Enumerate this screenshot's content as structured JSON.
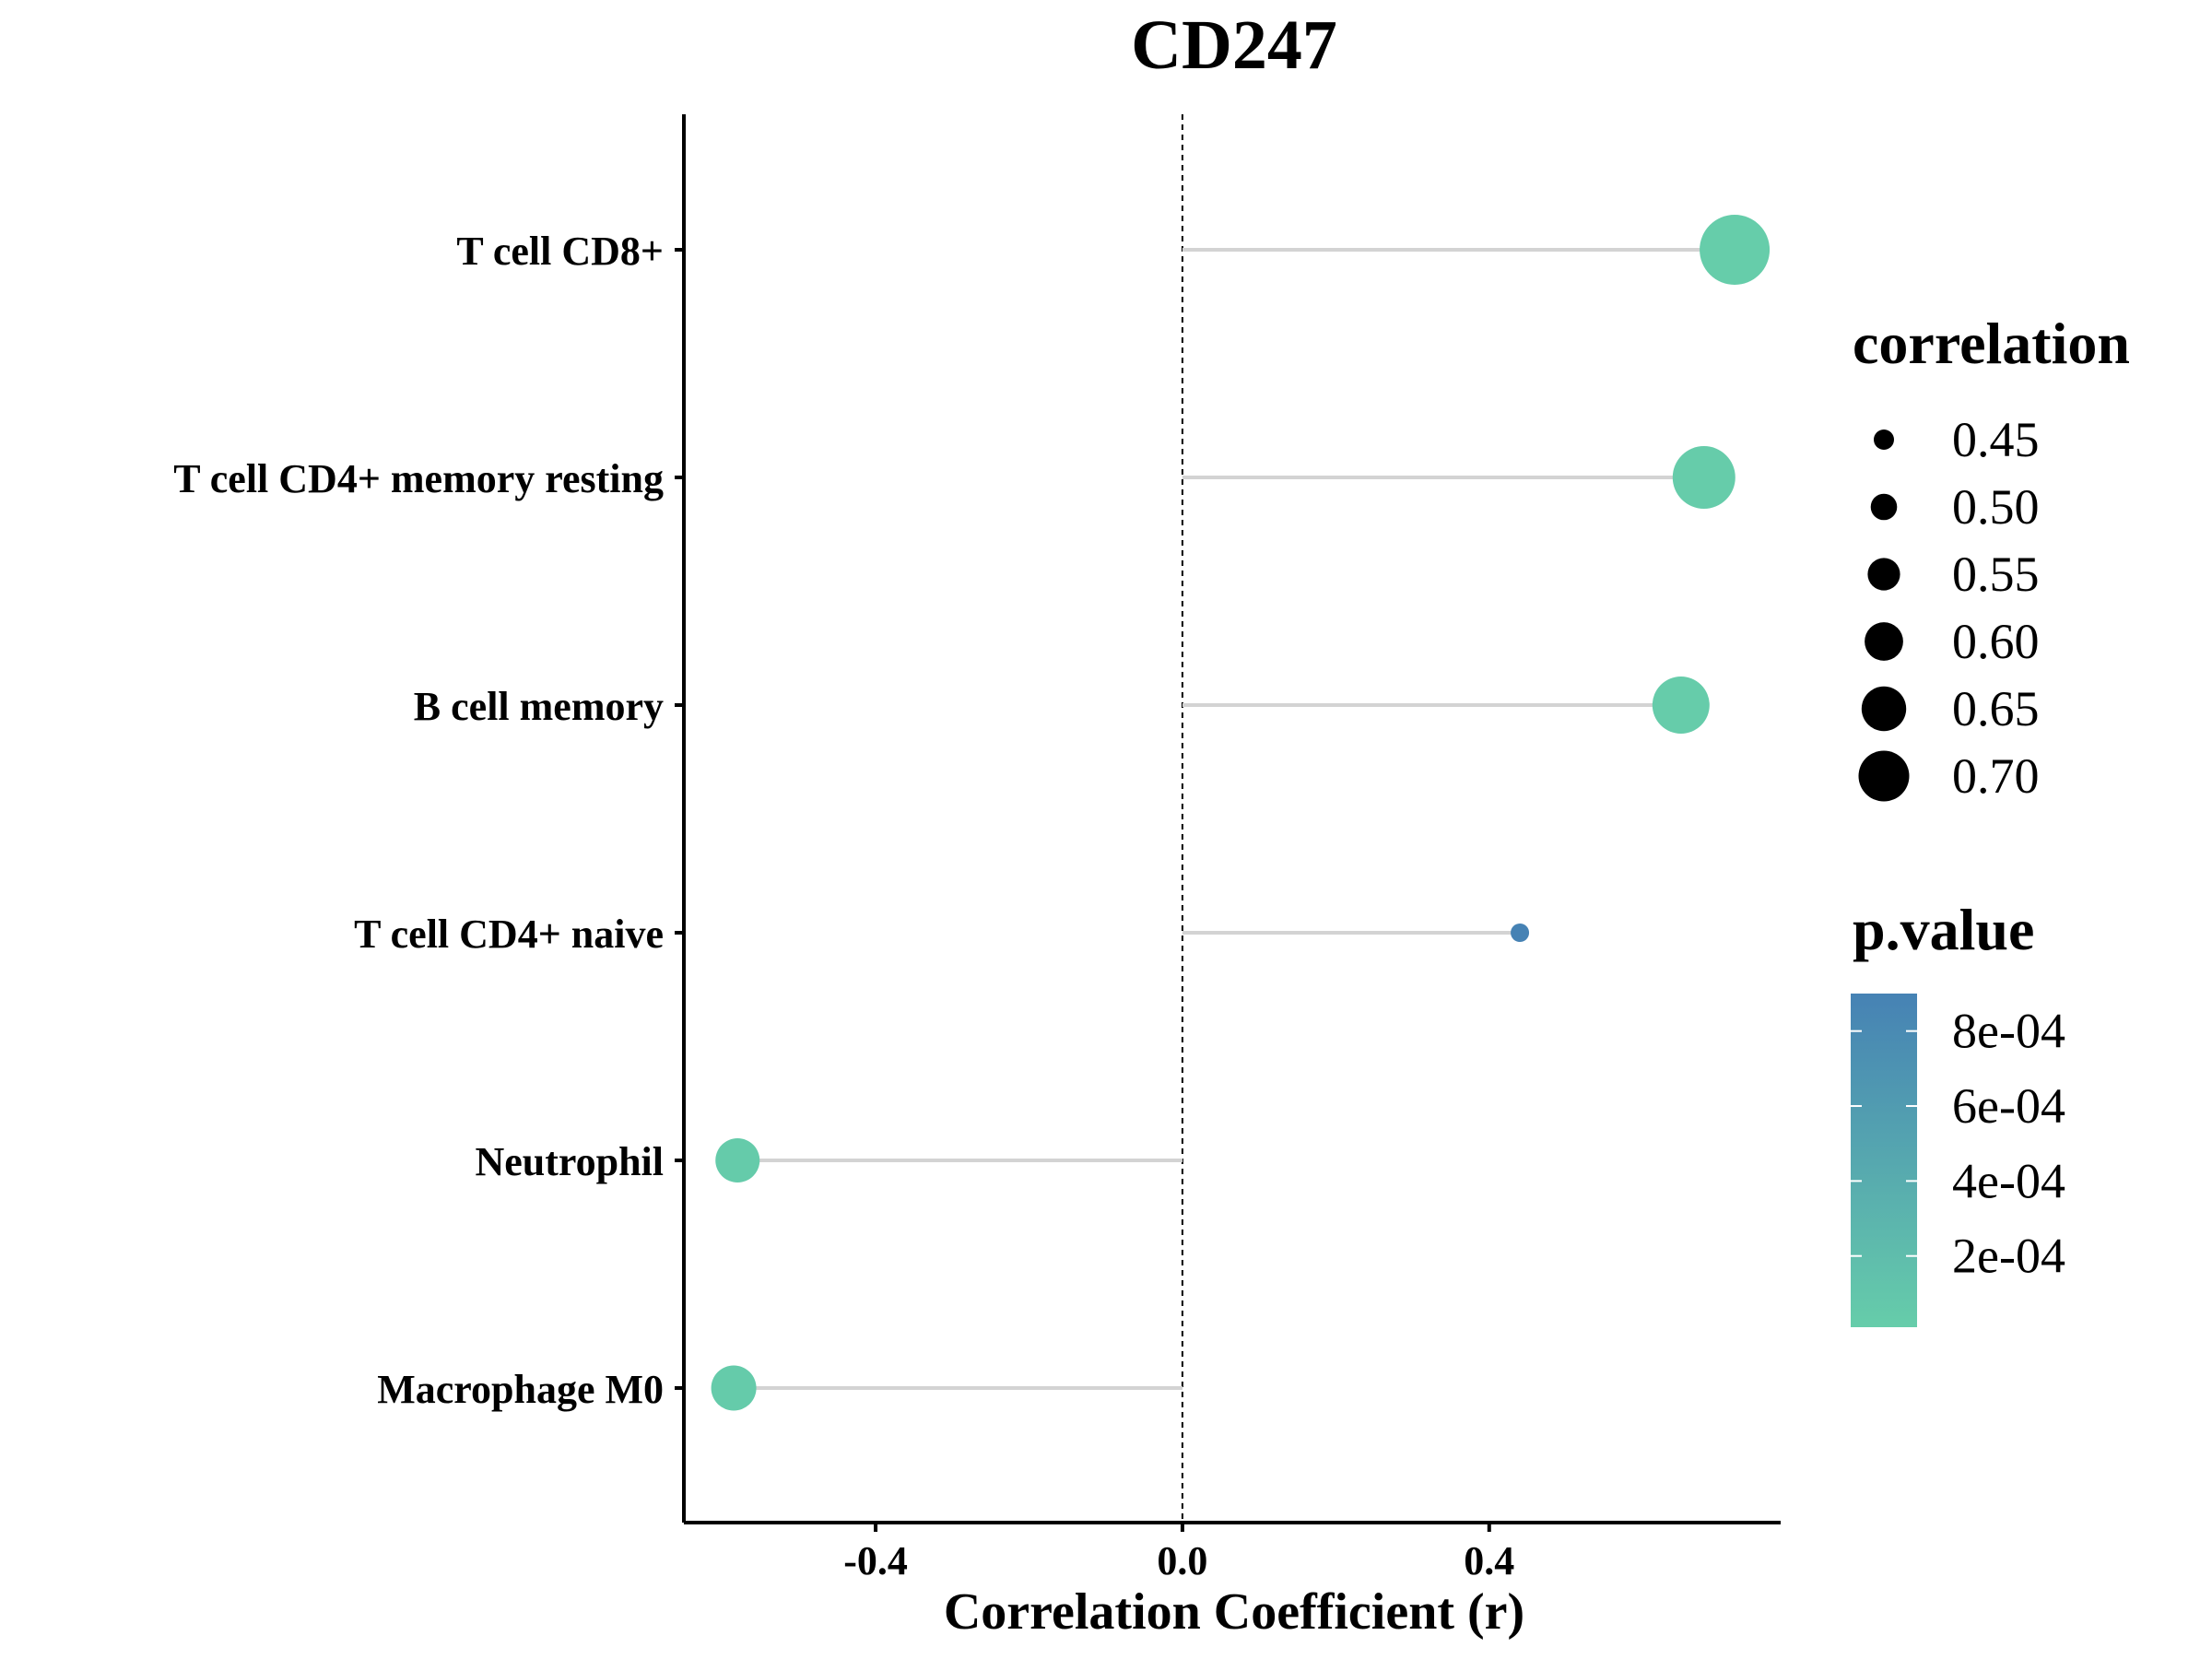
{
  "chart_data": {
    "type": "lollipop",
    "title": "CD247",
    "xlabel": "Correlation Coefficient (r)",
    "xlim": [
      -0.65,
      0.78
    ],
    "xticks": [
      -0.4,
      0.0,
      0.4
    ],
    "xtick_labels": [
      "-0.4",
      "0.0",
      "0.4"
    ],
    "reference_line": 0.0,
    "categories": [
      "T cell CD8+",
      "T cell CD4+ memory resting",
      "B cell memory",
      "T cell CD4+ naive",
      "Neutrophil",
      "Macrophage M0"
    ],
    "points": [
      {
        "category": "T cell CD8+",
        "r": 0.72,
        "abs_r": 0.72,
        "p": 1e-05
      },
      {
        "category": "T cell CD4+ memory resting",
        "r": 0.68,
        "abs_r": 0.68,
        "p": 2e-05
      },
      {
        "category": "B cell memory",
        "r": 0.65,
        "abs_r": 0.65,
        "p": 2e-05
      },
      {
        "category": "T cell CD4+ naive",
        "r": 0.44,
        "abs_r": 0.44,
        "p": 0.0009
      },
      {
        "category": "Neutrophil",
        "r": -0.58,
        "abs_r": 0.58,
        "p": 3e-05
      },
      {
        "category": "Macrophage M0",
        "r": -0.585,
        "abs_r": 0.585,
        "p": 3e-05
      }
    ],
    "size_legend": {
      "title": "correlation",
      "values": [
        0.45,
        0.5,
        0.55,
        0.6,
        0.65,
        0.7
      ],
      "labels": [
        "0.45",
        "0.50",
        "0.55",
        "0.60",
        "0.65",
        "0.70"
      ]
    },
    "color_legend": {
      "title": "p.value",
      "min": 1e-05,
      "max": 0.0009,
      "ticks": [
        0.0008,
        0.0006,
        0.0004,
        0.0002
      ],
      "tick_labels": [
        "8e-04",
        "6e-04",
        "4e-04",
        "2e-04"
      ],
      "low_color": "#66CDAA",
      "high_color": "#4682B4"
    },
    "stem_color": "#d3d3d3",
    "grid": false
  }
}
